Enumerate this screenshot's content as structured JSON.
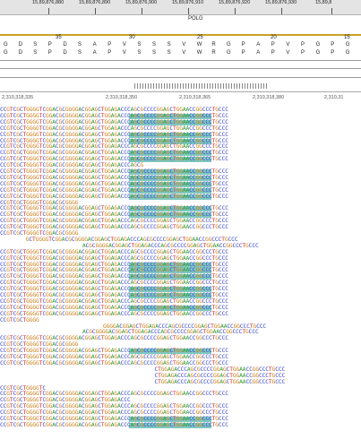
{
  "ruler": {
    "ticks": [
      "15,89,876,880",
      "15,89,876,890",
      "15,89,876,900",
      "15,89,876,910",
      "15,89,876,920",
      "15,89,876,930",
      "15,89,8"
    ]
  },
  "gene": {
    "name": "POLG"
  },
  "aa_numbers": [
    "35",
    "30",
    "25",
    "20",
    "15"
  ],
  "aa_row1": [
    "G",
    "D",
    "S",
    "P",
    "D",
    "S",
    "A",
    "P",
    "V",
    "S",
    "S",
    "S",
    "V",
    "W",
    "R",
    "G",
    "P",
    "A",
    "P",
    "V",
    "P",
    "G",
    "P",
    "G"
  ],
  "aa_row2": [
    "G",
    "D",
    "S",
    "P",
    "D",
    "S",
    "A",
    "P",
    "V",
    "S",
    "S",
    "S",
    "V",
    "W",
    "R",
    "G",
    "P",
    "A",
    "P",
    "V",
    "P",
    "G",
    "P",
    "G"
  ],
  "coords": [
    "2,310,318,335",
    "2,310,318,350",
    "2,310,318,365",
    "2,310,318,380",
    "2,310,31"
  ],
  "ref_seq": "CCGTCGCTGGGGTCGGACGCGGGGACGGAGCTGGAGACCCAGCGCCCCGGAGCTGGAACCGGCCCTGCCC",
  "colors": {
    "A": "#2a9a2a",
    "C": "#2f3fd0",
    "G": "#c77b12",
    "T": "#d01f1f",
    "highlight": "#7fc7c0"
  }
}
